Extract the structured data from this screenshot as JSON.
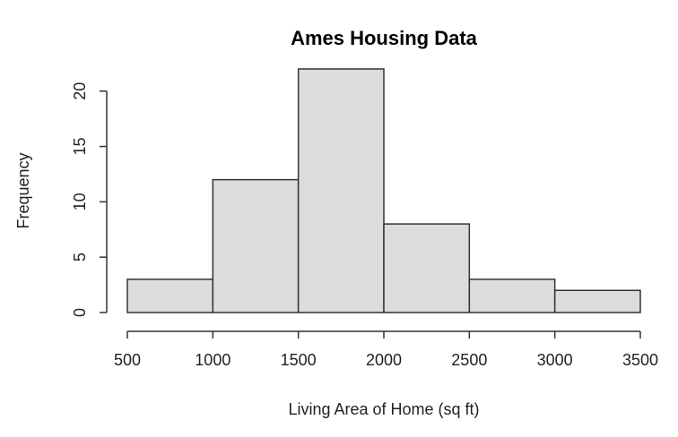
{
  "chart_data": {
    "type": "bar",
    "title": "Ames Housing Data",
    "xlabel": "Living Area of Home (sq ft)",
    "ylabel": "Frequency",
    "bins": [
      [
        500,
        1000
      ],
      [
        1000,
        1500
      ],
      [
        1500,
        2000
      ],
      [
        2000,
        2500
      ],
      [
        2500,
        3000
      ],
      [
        3000,
        3500
      ]
    ],
    "values": [
      3,
      12,
      22,
      8,
      3,
      2
    ],
    "xlim": [
      500,
      3500
    ],
    "ylim": [
      0,
      22
    ],
    "xticks": [
      500,
      1000,
      1500,
      2000,
      2500,
      3000,
      3500
    ],
    "yticks": [
      0,
      5,
      10,
      15,
      20
    ],
    "bar_color": "#dcdcdf",
    "grid": false
  }
}
